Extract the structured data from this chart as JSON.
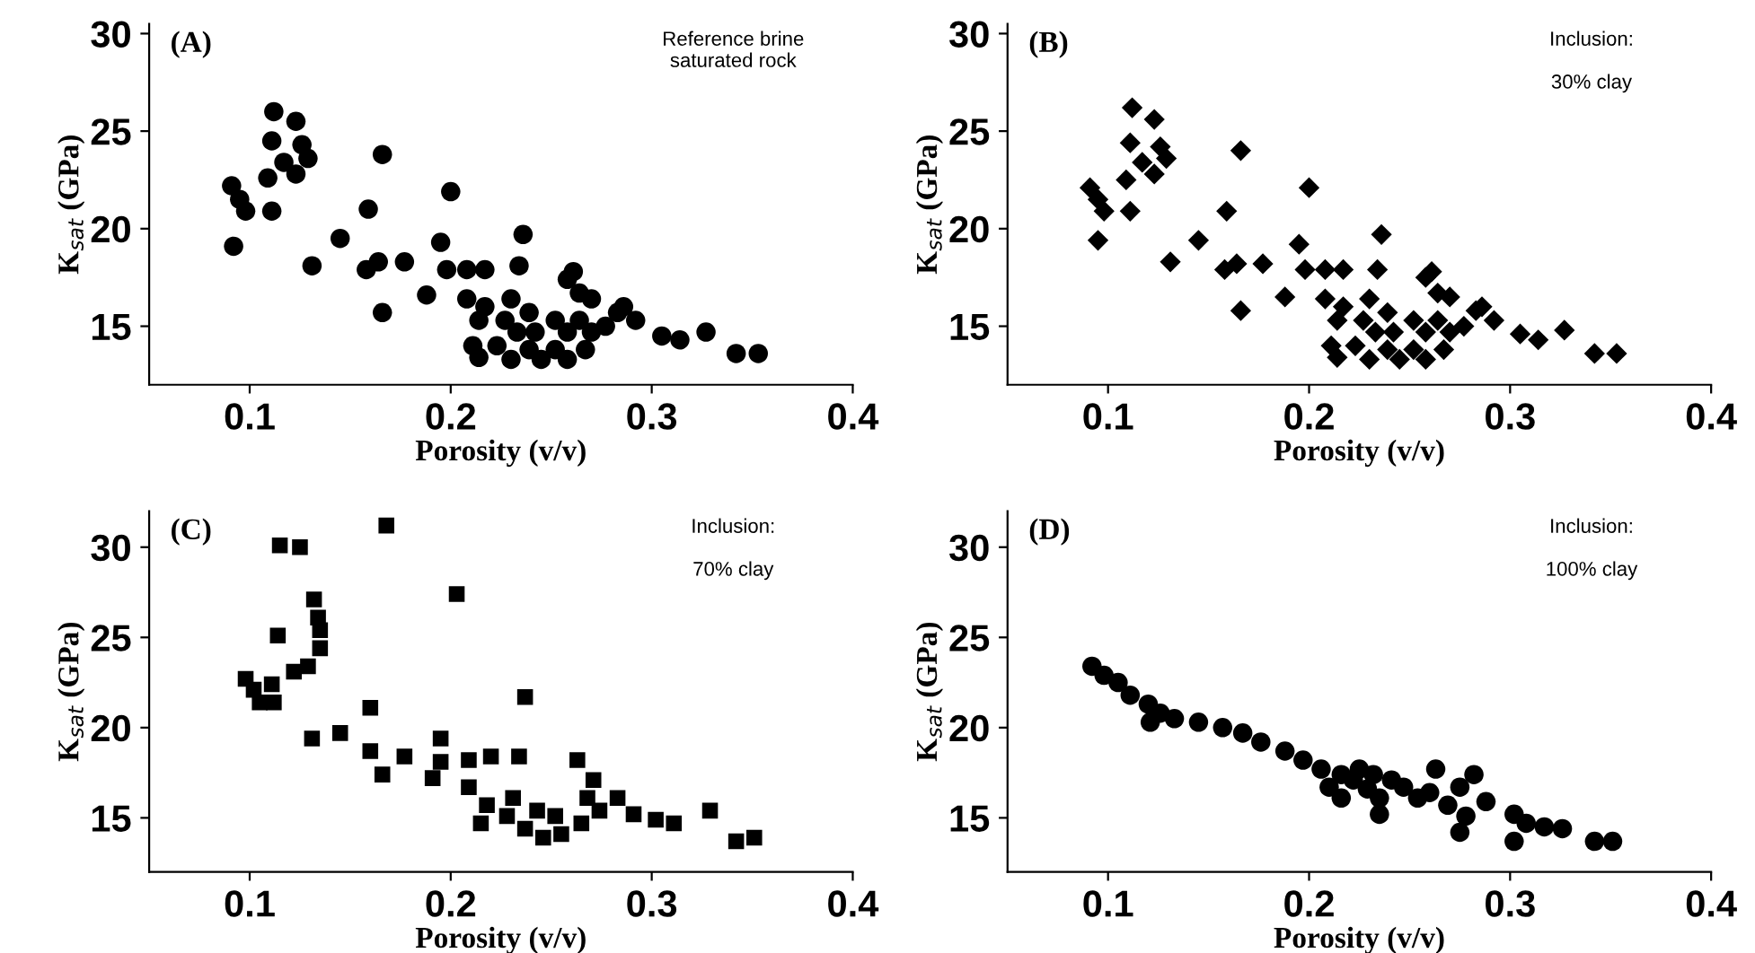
{
  "chart_data": [
    {
      "type": "scatter",
      "xlabel": "Porosity (v/v)",
      "ylabel": "K$_{sat}$ (GPa)",
      "annotations": [
        "(A)",
        "Reference brine\nsaturated rock"
      ],
      "xlim": [
        0.05,
        0.4
      ],
      "ylim": [
        12,
        30.5
      ],
      "xticks": [
        0.1,
        0.2,
        0.3,
        0.4
      ],
      "yticks": [
        15,
        20,
        25,
        30
      ],
      "marker": "circle",
      "grid": false,
      "series": [
        {
          "color": "#000000",
          "x": [
            0.091,
            0.095,
            0.098,
            0.111,
            0.092,
            0.109,
            0.111,
            0.112,
            0.123,
            0.126,
            0.129,
            0.123,
            0.117,
            0.131,
            0.145,
            0.159,
            0.166,
            0.158,
            0.164,
            0.177,
            0.166,
            0.188,
            0.195,
            0.2,
            0.198,
            0.208,
            0.217,
            0.234,
            0.236,
            0.258,
            0.27,
            0.283,
            0.292,
            0.305,
            0.314,
            0.327,
            0.342,
            0.353,
            0.208,
            0.214,
            0.211,
            0.217,
            0.227,
            0.233,
            0.239,
            0.245,
            0.252,
            0.258,
            0.264,
            0.27,
            0.252,
            0.239,
            0.23,
            0.223,
            0.214,
            0.23,
            0.258,
            0.267,
            0.277,
            0.286,
            0.264,
            0.261,
            0.242
          ],
          "values": [
            22.2,
            21.5,
            20.9,
            20.9,
            19.1,
            22.6,
            24.5,
            26.0,
            25.5,
            24.3,
            23.6,
            22.8,
            23.4,
            18.1,
            19.5,
            21.0,
            23.8,
            17.9,
            18.3,
            18.3,
            15.7,
            16.6,
            19.3,
            21.9,
            17.9,
            17.9,
            17.9,
            18.1,
            19.7,
            17.4,
            16.4,
            15.7,
            15.3,
            14.5,
            14.3,
            14.7,
            13.6,
            13.6,
            16.4,
            15.3,
            14.0,
            16.0,
            15.3,
            14.7,
            13.8,
            13.3,
            13.8,
            14.7,
            15.3,
            14.7,
            15.3,
            15.7,
            16.4,
            14.0,
            13.4,
            13.3,
            13.3,
            13.8,
            15.0,
            16.0,
            16.7,
            17.8,
            14.7
          ]
        }
      ]
    },
    {
      "type": "scatter",
      "xlabel": "Porosity (v/v)",
      "ylabel": "K$_{sat}$ (GPa)",
      "annotations": [
        "(B)",
        "Inclusion:\n\n30% clay"
      ],
      "xlim": [
        0.05,
        0.4
      ],
      "ylim": [
        12,
        30.5
      ],
      "xticks": [
        0.1,
        0.2,
        0.3,
        0.4
      ],
      "yticks": [
        15,
        20,
        25,
        30
      ],
      "marker": "diamond",
      "grid": false,
      "series": [
        {
          "color": "#000000",
          "x": [
            0.091,
            0.095,
            0.098,
            0.111,
            0.095,
            0.109,
            0.111,
            0.112,
            0.123,
            0.126,
            0.129,
            0.123,
            0.117,
            0.131,
            0.145,
            0.159,
            0.166,
            0.158,
            0.164,
            0.177,
            0.166,
            0.188,
            0.195,
            0.2,
            0.198,
            0.208,
            0.217,
            0.234,
            0.236,
            0.258,
            0.27,
            0.283,
            0.292,
            0.305,
            0.314,
            0.327,
            0.342,
            0.353,
            0.208,
            0.214,
            0.211,
            0.217,
            0.227,
            0.233,
            0.239,
            0.245,
            0.252,
            0.258,
            0.264,
            0.27,
            0.252,
            0.239,
            0.23,
            0.223,
            0.214,
            0.23,
            0.258,
            0.267,
            0.277,
            0.286,
            0.264,
            0.261,
            0.242
          ],
          "values": [
            22.1,
            21.5,
            20.9,
            20.9,
            19.4,
            22.5,
            24.4,
            26.2,
            25.6,
            24.2,
            23.6,
            22.8,
            23.4,
            18.3,
            19.4,
            20.9,
            24.0,
            17.9,
            18.2,
            18.2,
            15.8,
            16.5,
            19.2,
            22.1,
            17.9,
            17.9,
            17.9,
            17.9,
            19.7,
            17.5,
            16.5,
            15.8,
            15.3,
            14.6,
            14.3,
            14.8,
            13.6,
            13.6,
            16.4,
            15.3,
            14.0,
            16.0,
            15.3,
            14.7,
            13.8,
            13.3,
            13.8,
            14.7,
            15.3,
            14.7,
            15.3,
            15.7,
            16.4,
            14.0,
            13.4,
            13.3,
            13.3,
            13.8,
            15.0,
            16.0,
            16.7,
            17.8,
            14.7
          ]
        }
      ]
    },
    {
      "type": "scatter",
      "xlabel": "Porosity (v/v)",
      "ylabel": "K$_{sat}$ (GPa)",
      "annotations": [
        "(C)",
        "Inclusion:\n\n70% clay"
      ],
      "xlim": [
        0.05,
        0.4
      ],
      "ylim": [
        12,
        32
      ],
      "xticks": [
        0.1,
        0.2,
        0.3,
        0.4
      ],
      "yticks": [
        15,
        20,
        25,
        30
      ],
      "marker": "square",
      "grid": false,
      "series": [
        {
          "color": "#000000",
          "x": [
            0.115,
            0.125,
            0.168,
            0.203,
            0.132,
            0.134,
            0.135,
            0.135,
            0.129,
            0.122,
            0.114,
            0.098,
            0.102,
            0.105,
            0.111,
            0.112,
            0.131,
            0.145,
            0.16,
            0.16,
            0.166,
            0.177,
            0.195,
            0.195,
            0.191,
            0.209,
            0.22,
            0.234,
            0.237,
            0.263,
            0.271,
            0.283,
            0.302,
            0.311,
            0.329,
            0.342,
            0.351,
            0.209,
            0.218,
            0.215,
            0.228,
            0.237,
            0.246,
            0.255,
            0.265,
            0.274,
            0.291,
            0.243,
            0.231,
            0.252,
            0.268
          ],
          "values": [
            30.1,
            30.0,
            31.2,
            27.4,
            27.1,
            26.1,
            25.4,
            24.4,
            23.4,
            23.1,
            25.1,
            22.7,
            22.1,
            21.4,
            22.4,
            21.4,
            19.4,
            19.7,
            21.1,
            18.7,
            17.4,
            18.4,
            19.4,
            18.1,
            17.2,
            18.2,
            18.4,
            18.4,
            21.7,
            18.2,
            17.1,
            16.1,
            14.9,
            14.7,
            15.4,
            13.7,
            13.9,
            16.7,
            15.7,
            14.7,
            15.1,
            14.4,
            13.9,
            14.1,
            14.7,
            15.4,
            15.2,
            15.4,
            16.1,
            15.1,
            16.1
          ]
        }
      ]
    },
    {
      "type": "scatter",
      "xlabel": "Porosity (v/v)",
      "ylabel": "K$_{sat}$ (GPa)",
      "annotations": [
        "(D)",
        "Inclusion:\n\n100% clay"
      ],
      "xlim": [
        0.05,
        0.4
      ],
      "ylim": [
        12,
        32
      ],
      "xticks": [
        0.1,
        0.2,
        0.3,
        0.4
      ],
      "yticks": [
        15,
        20,
        25,
        30
      ],
      "marker": "circle",
      "grid": false,
      "series": [
        {
          "color": "#000000",
          "x": [
            0.092,
            0.098,
            0.105,
            0.111,
            0.12,
            0.126,
            0.121,
            0.133,
            0.145,
            0.157,
            0.167,
            0.176,
            0.188,
            0.197,
            0.206,
            0.216,
            0.222,
            0.229,
            0.235,
            0.235,
            0.241,
            0.247,
            0.254,
            0.26,
            0.263,
            0.269,
            0.275,
            0.282,
            0.278,
            0.288,
            0.275,
            0.302,
            0.302,
            0.308,
            0.317,
            0.326,
            0.342,
            0.351,
            0.21,
            0.225,
            0.232,
            0.216
          ],
          "values": [
            23.4,
            22.9,
            22.5,
            21.8,
            21.3,
            20.8,
            20.3,
            20.5,
            20.3,
            20.0,
            19.7,
            19.2,
            18.7,
            18.2,
            17.7,
            17.4,
            17.1,
            16.6,
            16.1,
            15.2,
            17.1,
            16.7,
            16.1,
            16.4,
            17.7,
            15.7,
            16.7,
            17.4,
            15.1,
            15.9,
            14.2,
            15.2,
            13.7,
            14.7,
            14.5,
            14.4,
            13.7,
            13.7,
            16.7,
            17.7,
            17.4,
            16.1
          ]
        }
      ]
    }
  ]
}
